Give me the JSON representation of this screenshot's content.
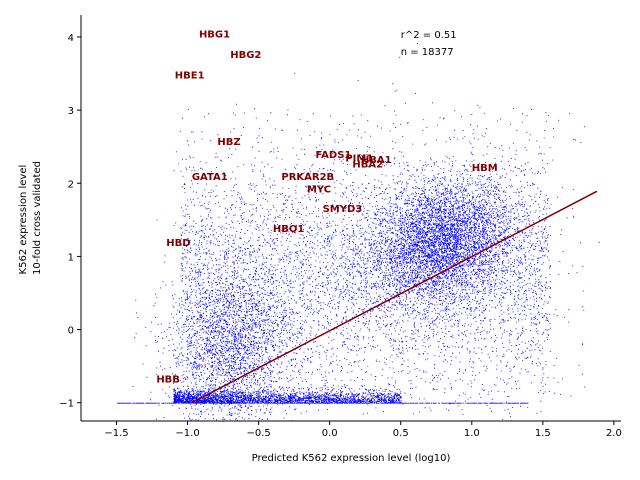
{
  "chart_data": {
    "type": "scatter",
    "title": "",
    "xlabel": "Predicted K562 expression level (log10)",
    "ylabel_lines": [
      "K562 expression level",
      "10-fold cross validated"
    ],
    "xlim": [
      -1.75,
      2.05
    ],
    "ylim": [
      -1.25,
      4.3
    ],
    "x_ticks": [
      -1.5,
      -1.0,
      -0.5,
      0.0,
      0.5,
      1.0,
      1.5,
      2.0
    ],
    "x_tick_labels": [
      "−1.5",
      "−1.0",
      "−0.5",
      "0.0",
      "0.5",
      "1.0",
      "1.5",
      "2.0"
    ],
    "y_ticks": [
      -1,
      0,
      1,
      2,
      3,
      4
    ],
    "y_tick_labels": [
      "−1",
      "0",
      "1",
      "2",
      "3",
      "4"
    ],
    "grid": false,
    "point_color": "#0000ff",
    "line_color": "#800000",
    "label_color": "#800000",
    "stats": {
      "r2": "r^2 = 0.51",
      "n": "n = 18377"
    },
    "fit_line": {
      "x": [
        -0.97,
        1.88
      ],
      "y": [
        -1.0,
        1.89
      ]
    },
    "annotations": [
      {
        "text": "HBG1",
        "x": -0.92,
        "y": 4.05
      },
      {
        "text": "HBG2",
        "x": -0.7,
        "y": 3.77
      },
      {
        "text": "HBE1",
        "x": -1.09,
        "y": 3.49
      },
      {
        "text": "HBZ",
        "x": -0.79,
        "y": 2.58
      },
      {
        "text": "FADS1",
        "x": -0.1,
        "y": 2.4
      },
      {
        "text": "PIM1",
        "x": 0.11,
        "y": 2.35
      },
      {
        "text": "HBA1",
        "x": 0.22,
        "y": 2.33
      },
      {
        "text": "HBA2",
        "x": 0.16,
        "y": 2.27
      },
      {
        "text": "HBM",
        "x": 1.0,
        "y": 2.22
      },
      {
        "text": "GATA1",
        "x": -0.97,
        "y": 2.1
      },
      {
        "text": "PRKAR2B",
        "x": -0.34,
        "y": 2.1
      },
      {
        "text": "MYC",
        "x": -0.16,
        "y": 1.93
      },
      {
        "text": "SMYD3",
        "x": -0.05,
        "y": 1.66
      },
      {
        "text": "HBQ1",
        "x": -0.4,
        "y": 1.39
      },
      {
        "text": "HBD",
        "x": -1.15,
        "y": 1.2
      },
      {
        "text": "HBB",
        "x": -1.22,
        "y": -0.67
      }
    ]
  }
}
